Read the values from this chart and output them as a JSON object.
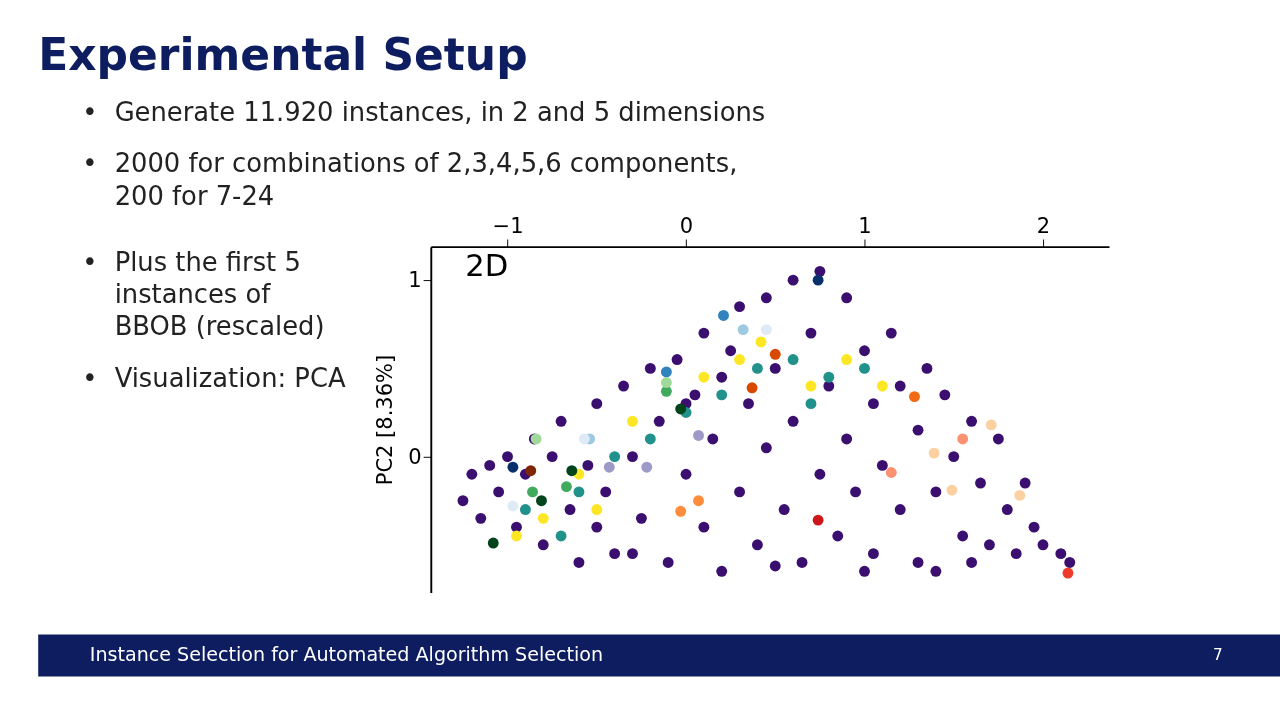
{
  "chart_data": {
    "type": "scatter",
    "title": "Experimental Setup",
    "ylabel": "PC2 [8.36%]",
    "annotations": [
      "Generate 11.920 instances, in 2 and 5 dimensions",
      "2000 for combinations of 2,3,4,5,6 components,\n200 for 7-24",
      "Plus the first 5\ninstances of\nBBOB (rescaled)",
      "Visualization: PCA",
      "2D",
      "Instance Selection for Automated Algorithm Selection",
      "7",
      "•",
      "•",
      "•",
      "•"
    ],
    "xlim": [
      -1.43,
      2.37
    ],
    "xticks": [
      -1,
      0,
      1,
      2
    ],
    "ylim": [
      -0.77,
      1.19
    ],
    "yticks": [
      0,
      1
    ],
    "grid": false,
    "legend": false,
    "marker": "circle",
    "series": [
      {
        "color": "#3b0f6f",
        "x": [
          -1.25,
          -1.2,
          -1.15,
          -1.1,
          -1.05,
          -1.0,
          -0.95,
          -0.9,
          -0.85,
          -0.8,
          -0.75,
          -0.7,
          -0.65,
          -0.6,
          -0.55,
          -0.5,
          -0.45,
          -0.4,
          -0.35,
          -0.3,
          -0.25,
          -0.2,
          -0.15,
          -0.1,
          -0.05,
          0.0,
          0.05,
          0.1,
          0.1,
          0.15,
          0.2,
          0.25,
          0.3,
          0.3,
          0.35,
          0.4,
          0.45,
          0.45,
          0.5,
          0.55,
          0.6,
          0.6,
          0.65,
          0.7,
          0.75,
          0.75,
          0.8,
          0.85,
          0.9,
          0.9,
          0.95,
          1.0,
          1.05,
          1.05,
          1.1,
          1.15,
          1.2,
          1.2,
          1.3,
          1.3,
          1.35,
          1.4,
          1.45,
          1.5,
          1.55,
          1.6,
          1.65,
          1.7,
          1.75,
          1.8,
          1.85,
          1.9,
          1.95,
          2.0,
          2.1,
          2.15,
          1.4,
          1.6,
          0.0,
          -0.3,
          0.5,
          1.0,
          0.2,
          -0.5
        ],
        "values": [
          -0.25,
          -0.1,
          -0.35,
          -0.05,
          -0.2,
          0.0,
          -0.4,
          -0.1,
          0.1,
          -0.5,
          0.0,
          0.2,
          -0.3,
          -0.6,
          -0.05,
          0.3,
          -0.2,
          -0.55,
          0.4,
          0.0,
          -0.35,
          0.5,
          0.2,
          -0.6,
          0.55,
          -0.1,
          0.35,
          0.7,
          -0.4,
          0.1,
          -0.65,
          0.6,
          0.85,
          -0.2,
          0.3,
          -0.5,
          0.9,
          0.05,
          0.5,
          -0.3,
          1.0,
          0.2,
          -0.6,
          0.7,
          1.05,
          -0.1,
          0.4,
          -0.45,
          0.9,
          0.1,
          -0.2,
          0.6,
          0.3,
          -0.55,
          -0.05,
          0.7,
          0.4,
          -0.3,
          0.15,
          -0.6,
          0.5,
          -0.2,
          0.35,
          0.0,
          -0.45,
          0.2,
          -0.15,
          -0.5,
          0.1,
          -0.3,
          -0.55,
          -0.15,
          -0.4,
          -0.5,
          -0.55,
          -0.6,
          -0.65,
          -0.6,
          0.3,
          -0.55,
          -0.62,
          -0.65,
          0.45,
          -0.4
        ]
      },
      {
        "color": "#21918c",
        "x": [
          -0.9,
          -0.6,
          -0.4,
          -0.2,
          0.0,
          0.2,
          0.4,
          0.6,
          0.8,
          1.0,
          0.7,
          -0.7
        ],
        "values": [
          -0.3,
          -0.2,
          0.0,
          0.1,
          0.25,
          0.35,
          0.5,
          0.55,
          0.45,
          0.5,
          0.3,
          -0.45
        ]
      },
      {
        "color": "#fde725",
        "x": [
          -0.95,
          -0.8,
          -0.6,
          -0.5,
          -0.3,
          0.1,
          0.42,
          0.7,
          0.9,
          1.1,
          0.3
        ],
        "values": [
          -0.45,
          -0.35,
          -0.1,
          -0.3,
          0.2,
          0.45,
          0.65,
          0.4,
          0.55,
          0.4,
          0.55
        ]
      },
      {
        "color": "#fd8d3c",
        "x": [
          0.07,
          -0.03
        ],
        "values": [
          -0.25,
          -0.31
        ]
      },
      {
        "color": "#d94801",
        "x": [
          0.37,
          0.5
        ],
        "values": [
          0.39,
          0.58
        ]
      },
      {
        "color": "#f16913",
        "x": [
          1.28
        ],
        "values": [
          0.34
        ]
      },
      {
        "color": "#cb181d",
        "x": [
          0.74
        ],
        "values": [
          -0.36
        ]
      },
      {
        "color": "#ef3b2c",
        "x": [
          2.14
        ],
        "values": [
          -0.66
        ]
      },
      {
        "color": "#fc9272",
        "x": [
          1.55,
          1.15
        ],
        "values": [
          0.1,
          -0.09
        ]
      },
      {
        "color": "#fdd0a2",
        "x": [
          1.39,
          1.87,
          1.49,
          1.71
        ],
        "values": [
          0.02,
          -0.22,
          -0.19,
          0.18
        ]
      },
      {
        "color": "#9ecae1",
        "x": [
          0.32,
          -0.54
        ],
        "values": [
          0.72,
          0.1
        ]
      },
      {
        "color": "#3182bd",
        "x": [
          0.21,
          -0.11
        ],
        "values": [
          0.8,
          0.48
        ]
      },
      {
        "color": "#08306b",
        "x": [
          0.74,
          -0.97
        ],
        "values": [
          1.0,
          -0.06
        ]
      },
      {
        "color": "#00441b",
        "x": [
          -0.03,
          -0.64,
          -0.81,
          -1.08
        ],
        "values": [
          0.27,
          -0.08,
          -0.25,
          -0.49
        ]
      },
      {
        "color": "#41ab5d",
        "x": [
          -0.11,
          -0.67,
          -0.86
        ],
        "values": [
          0.37,
          -0.17,
          -0.2
        ]
      },
      {
        "color": "#a1d99b",
        "x": [
          -0.84,
          -0.11
        ],
        "values": [
          0.1,
          0.42
        ]
      },
      {
        "color": "#9e9ac8",
        "x": [
          -0.43,
          -0.22,
          0.07
        ],
        "values": [
          -0.06,
          -0.06,
          0.12
        ]
      },
      {
        "color": "#deebf7",
        "x": [
          -0.97,
          -0.57,
          0.45
        ],
        "values": [
          -0.28,
          0.1,
          0.72
        ]
      },
      {
        "color": "#7f2704",
        "x": [
          -0.87
        ],
        "values": [
          -0.08
        ]
      }
    ]
  }
}
